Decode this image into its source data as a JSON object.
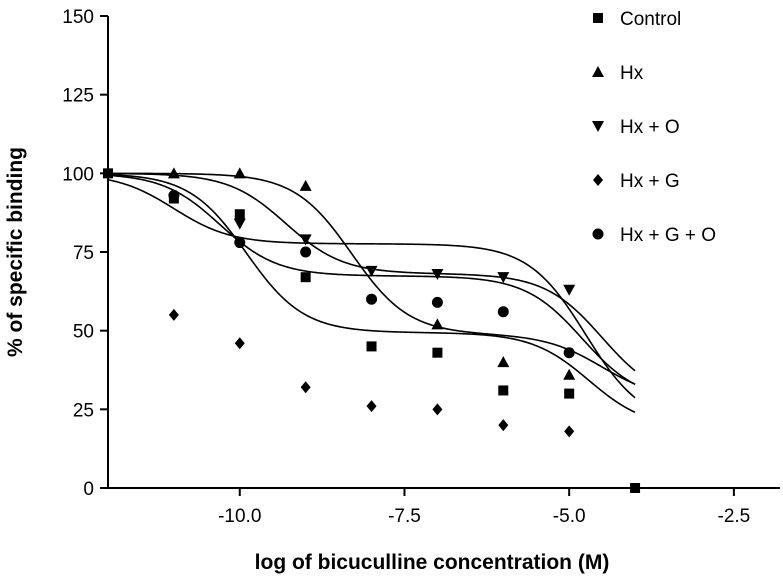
{
  "chart_data": {
    "type": "scatter",
    "title": "",
    "xlabel": "log of bicuculline concentration (M)",
    "ylabel": "% of specific binding",
    "xlim": [
      -12,
      -1.8
    ],
    "ylim": [
      0,
      150
    ],
    "xticks": [
      -10.0,
      -7.5,
      -5.0,
      -2.5
    ],
    "xtick_labels": [
      "-10.0",
      "-7.5",
      "-5.0",
      "-2.5"
    ],
    "yticks": [
      0,
      25,
      50,
      75,
      100,
      125,
      150
    ],
    "ytick_labels": [
      "0",
      "25",
      "50",
      "75",
      "100",
      "125",
      "150"
    ],
    "grid": false,
    "legend_position": "top-right",
    "fit": "two-site sigmoidal curves",
    "series": [
      {
        "name": "Control",
        "marker": "square",
        "x": [
          -12,
          -11,
          -10,
          -9,
          -8,
          -7,
          -6,
          -5,
          -4
        ],
        "y": [
          100,
          92,
          87,
          67,
          45,
          43,
          31,
          30,
          0
        ],
        "curve": [
          100,
          27.5,
          -10.3,
          -4.8,
          45,
          50
        ]
      },
      {
        "name": "Hx",
        "marker": "triangle-up",
        "x": [
          -11,
          -10,
          -9,
          -7,
          -6,
          -5
        ],
        "y": [
          100,
          100,
          96,
          52,
          40,
          36
        ],
        "curve": [
          100,
          27.5,
          -9.3,
          -4.5,
          44,
          49
        ]
      },
      {
        "name": "Hx + O",
        "marker": "triangle-down",
        "x": [
          -10,
          -9,
          -8,
          -7,
          -6,
          -5
        ],
        "y": [
          84,
          79,
          69,
          68,
          67,
          63
        ],
        "curve": [
          100,
          28,
          -8.3,
          -4.5,
          71,
          75
        ]
      },
      {
        "name": "Hx + G",
        "marker": "diamond",
        "x": [
          -11,
          -10,
          -9,
          -8,
          -7,
          -6,
          -5
        ],
        "y": [
          55,
          46,
          32,
          26,
          25,
          20,
          18
        ],
        "curve": [
          100,
          20,
          -11,
          -4.75,
          28,
          24
        ]
      },
      {
        "name": "Hx + G + O",
        "marker": "circle",
        "x": [
          -11,
          -10,
          -9,
          -8,
          -7,
          -6,
          -5
        ],
        "y": [
          93,
          78,
          75,
          60,
          59,
          56,
          43
        ],
        "curve": [
          100,
          19,
          -9.9,
          -4.7,
          62.5,
          58
        ]
      }
    ]
  }
}
